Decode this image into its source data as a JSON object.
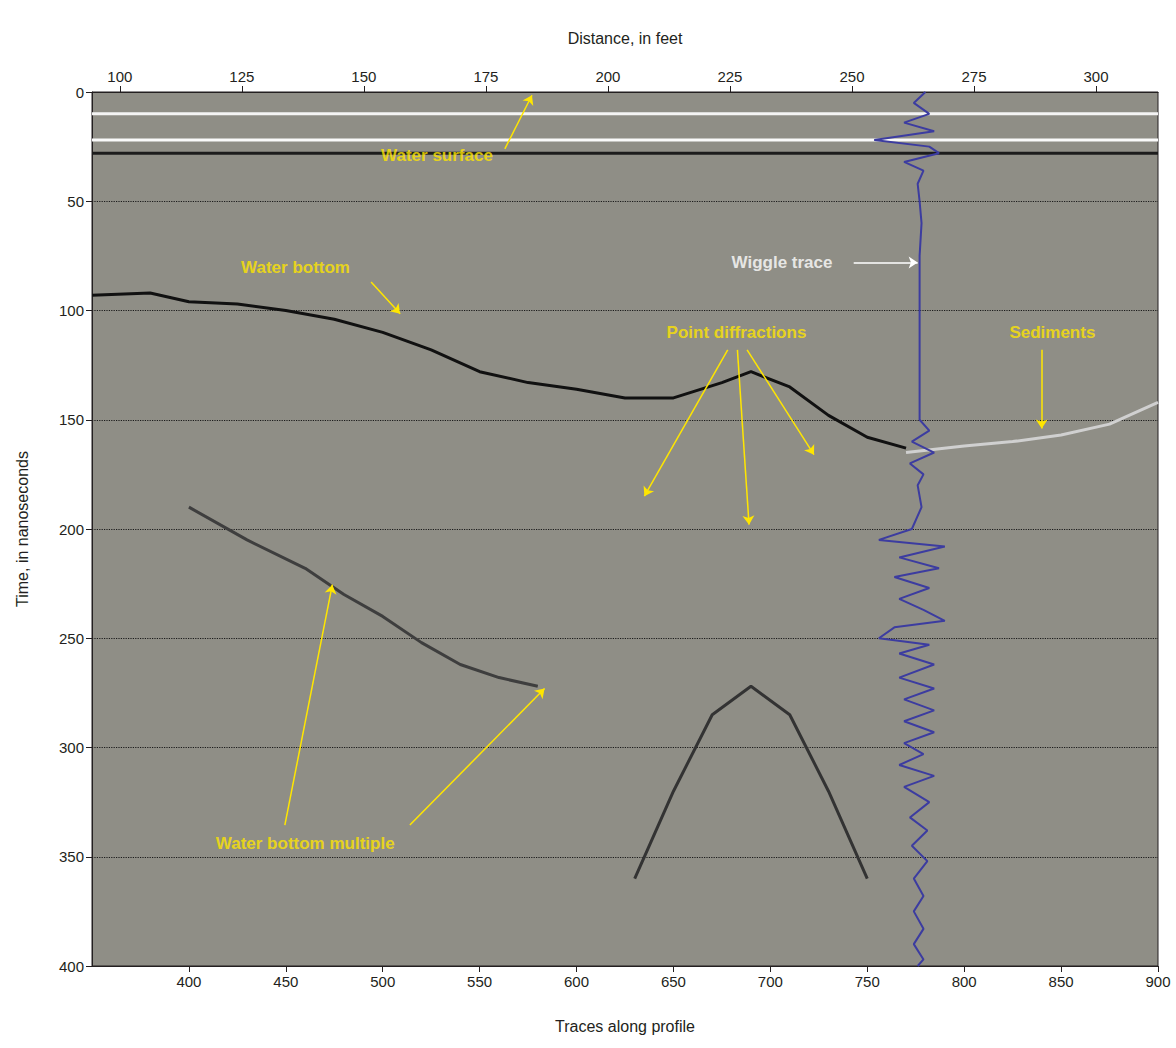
{
  "chart_data": {
    "type": "line",
    "x_label": "Traces along profile",
    "x2_label": "Distance, in feet",
    "y_label": "Time, in nanoseconds",
    "xlim": [
      350,
      900
    ],
    "xticks": [
      400,
      450,
      500,
      550,
      600,
      650,
      700,
      750,
      800,
      850,
      900
    ],
    "x2lim": [
      94.3,
      312.7
    ],
    "x2ticks": [
      100,
      125,
      150,
      175,
      200,
      225,
      250,
      275,
      300
    ],
    "ylim": [
      0,
      400
    ],
    "yticks": [
      0,
      50,
      100,
      150,
      200,
      250,
      300,
      350,
      400
    ],
    "grid": true,
    "series": [
      {
        "color": "#f4f4f4",
        "x": [
          350,
          900
        ],
        "y": [
          10,
          10
        ]
      },
      {
        "color": "#fafafa",
        "x": [
          350,
          900
        ],
        "y": [
          22,
          22
        ]
      },
      {
        "color": "#1c1c1c",
        "x": [
          350,
          900
        ],
        "y": [
          28,
          28
        ]
      },
      {
        "color": "#111111",
        "x": [
          350,
          380,
          400,
          425,
          450,
          475,
          500,
          525,
          550,
          575,
          600,
          625,
          650,
          675,
          690,
          710,
          730,
          750,
          770
        ],
        "y": [
          93,
          92,
          96,
          97,
          100,
          104,
          110,
          118,
          128,
          133,
          136,
          140,
          140,
          133,
          128,
          135,
          148,
          158,
          163
        ]
      },
      {
        "color": "#d0d0d0",
        "x": [
          770,
          800,
          825,
          850,
          875,
          900
        ],
        "y": [
          165,
          162,
          160,
          157,
          152,
          142
        ]
      },
      {
        "color": "#3e3e3e",
        "x": [
          400,
          430,
          460,
          480,
          500,
          520,
          540,
          560,
          580
        ],
        "y": [
          190,
          205,
          218,
          230,
          240,
          252,
          262,
          268,
          272
        ]
      },
      {
        "color": "#333333",
        "x": [
          630,
          650,
          670,
          690,
          710,
          730,
          750
        ],
        "y": [
          360,
          320,
          285,
          272,
          285,
          320,
          360
        ]
      },
      {
        "color": "#3c3ca0",
        "x": [
          780,
          774,
          782,
          769,
          784.5,
          753.6,
          782,
          787,
          769,
          779,
          776,
          777,
          778,
          777,
          777,
          777,
          777,
          782,
          773,
          784.5,
          772,
          779,
          776,
          778,
          773,
          756,
          790,
          766.5,
          787,
          764,
          782,
          766.5,
          779,
          790,
          764,
          756,
          782,
          766.5,
          784.5,
          766.5,
          784.5,
          769,
          784.5,
          769,
          784.5,
          769,
          779,
          766.5,
          784.5,
          769,
          782,
          772,
          781,
          773,
          781,
          774,
          779,
          774,
          779,
          774,
          779,
          776
        ],
        "y": [
          0,
          5,
          10,
          14,
          18,
          22,
          25,
          28,
          32,
          36,
          42,
          50,
          60,
          75,
          100,
          130,
          150,
          155,
          160,
          165,
          170,
          175,
          180,
          190,
          200,
          205,
          208,
          213,
          218,
          222,
          227,
          232,
          237,
          242,
          245,
          250,
          253,
          257,
          262,
          268,
          273,
          278,
          283,
          288,
          293,
          298,
          303,
          308,
          313,
          318,
          325,
          332,
          338,
          345,
          352,
          360,
          368,
          375,
          383,
          390,
          397,
          400
        ]
      }
    ],
    "annotations": [
      {
        "text": "Water surface",
        "color": "#ffe600",
        "x": 528,
        "y": 29,
        "arrows": [
          {
            "from": [
              563,
              26
            ],
            "to": [
              577,
              1.5
            ]
          }
        ]
      },
      {
        "text": "Water bottom",
        "color": "#ffe600",
        "x": 455,
        "y": 80.5,
        "arrows": [
          {
            "from": [
              494,
              87
            ],
            "to": [
              509,
              101.5
            ]
          }
        ]
      },
      {
        "text": "Wiggle trace",
        "color": "#ffffff",
        "x": 706,
        "y": 78,
        "arrows": [
          {
            "from": [
              743,
              78
            ],
            "to": [
              776,
              78
            ]
          }
        ]
      },
      {
        "text": "Point diffractions",
        "color": "#ffe600",
        "x": 682.5,
        "y": 110,
        "arrows": [
          {
            "from": [
              678,
              118
            ],
            "to": [
              635,
              185
            ]
          },
          {
            "from": [
              683,
              118
            ],
            "to": [
              689,
              198
            ]
          },
          {
            "from": [
              688,
              118
            ],
            "to": [
              722.5,
              166
            ]
          }
        ]
      },
      {
        "text": "Sediments",
        "color": "#ffe600",
        "x": 845.5,
        "y": 110,
        "arrows": [
          {
            "from": [
              840,
              118
            ],
            "to": [
              840,
              154
            ]
          }
        ]
      },
      {
        "text": "Water bottom multiple",
        "color": "#ffe600",
        "x": 460,
        "y": 344,
        "arrows": [
          {
            "from": [
              449.5,
              335.5
            ],
            "to": [
              474,
              225.5
            ]
          },
          {
            "from": [
              514,
              335.5
            ],
            "to": [
              583.5,
              273
            ]
          }
        ]
      }
    ]
  }
}
